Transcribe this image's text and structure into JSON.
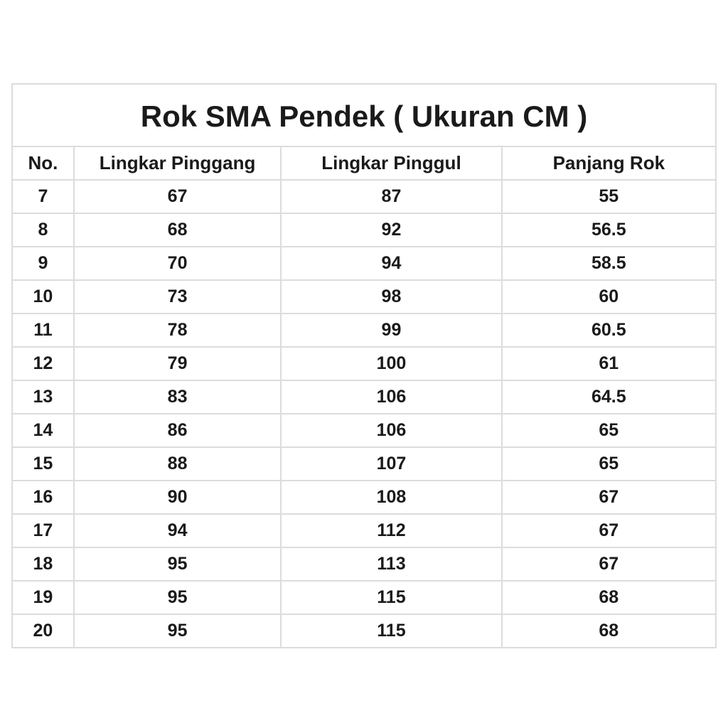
{
  "title": "Rok SMA Pendek ( Ukuran CM )",
  "headers": [
    "No.",
    "Lingkar Pinggang",
    "Lingkar Pinggul",
    "Panjang Rok"
  ],
  "rows": [
    [
      "7",
      "67",
      "87",
      "55"
    ],
    [
      "8",
      "68",
      "92",
      "56.5"
    ],
    [
      "9",
      "70",
      "94",
      "58.5"
    ],
    [
      "10",
      "73",
      "98",
      "60"
    ],
    [
      "11",
      "78",
      "99",
      "60.5"
    ],
    [
      "12",
      "79",
      "100",
      "61"
    ],
    [
      "13",
      "83",
      "106",
      "64.5"
    ],
    [
      "14",
      "86",
      "106",
      "65"
    ],
    [
      "15",
      "88",
      "107",
      "65"
    ],
    [
      "16",
      "90",
      "108",
      "67"
    ],
    [
      "17",
      "94",
      "112",
      "67"
    ],
    [
      "18",
      "95",
      "113",
      "67"
    ],
    [
      "19",
      "95",
      "115",
      "68"
    ],
    [
      "20",
      "95",
      "115",
      "68"
    ]
  ]
}
